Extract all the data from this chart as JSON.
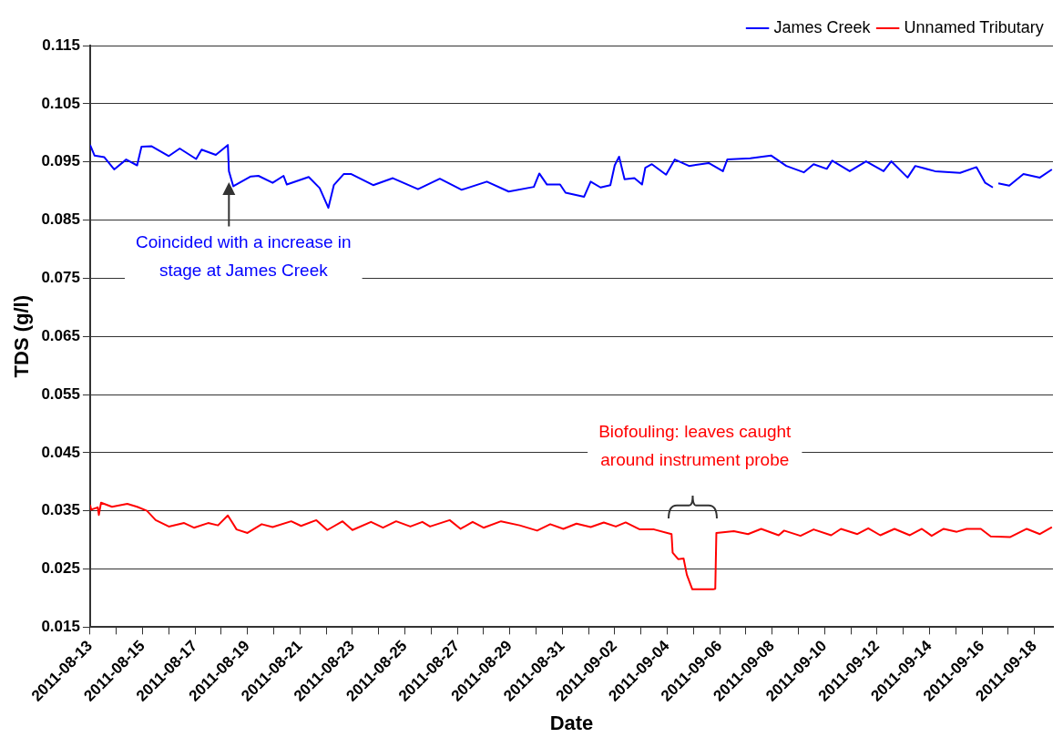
{
  "chart_data": {
    "type": "line",
    "xlabel": "Date",
    "ylabel": "TDS (g/l)",
    "xlim": [
      "2011-08-13T00:00",
      "2011-09-18T17:00"
    ],
    "xticks": [
      "2011-08-13",
      {
        "value": "2011-08-14",
        "label": null
      },
      "2011-08-15",
      {
        "value": "2011-08-16",
        "label": null
      },
      "2011-08-17",
      {
        "value": "2011-08-18",
        "label": null
      },
      "2011-08-19",
      {
        "value": "2011-08-20",
        "label": null
      },
      "2011-08-21",
      {
        "value": "2011-08-22",
        "label": null
      },
      "2011-08-23",
      {
        "value": "2011-08-24",
        "label": null
      },
      "2011-08-25",
      {
        "value": "2011-08-26",
        "label": null
      },
      "2011-08-27",
      {
        "value": "2011-08-28",
        "label": null
      },
      "2011-08-29",
      {
        "value": "2011-08-30",
        "label": null
      },
      "2011-08-31",
      {
        "value": "2011-09-01",
        "label": null
      },
      "2011-09-02",
      {
        "value": "2011-09-03",
        "label": null
      },
      "2011-09-04",
      {
        "value": "2011-09-05",
        "label": null
      },
      "2011-09-06",
      {
        "value": "2011-09-07",
        "label": null
      },
      "2011-09-08",
      {
        "value": "2011-09-09",
        "label": null
      },
      "2011-09-10",
      {
        "value": "2011-09-11",
        "label": null
      },
      "2011-09-12",
      {
        "value": "2011-09-13",
        "label": null
      },
      "2011-09-14",
      {
        "value": "2011-09-15",
        "label": null
      },
      "2011-09-16",
      {
        "value": "2011-09-17",
        "label": null
      },
      "2011-09-18"
    ],
    "ylim": [
      0.015,
      0.115
    ],
    "yticks": [
      0.015,
      0.025,
      0.035,
      0.045,
      0.055,
      0.065,
      0.075,
      0.085,
      0.095,
      0.105,
      0.115
    ],
    "grid": "y",
    "legend": "top right",
    "marker": "none",
    "line_style": "solid",
    "annotations": [
      {
        "text": "Coincided with a increase in stage at James Creek",
        "x": "2011-08-18T07:00",
        "y": 0.0915
      },
      "Biofouling: leaves caught around instrument probe"
    ],
    "series": [
      {
        "name": "James Creek",
        "color": "#0000ff",
        "x": [
          "2011-08-13T00:00",
          "2011-08-13T04:00",
          "2011-08-13T13:00",
          "2011-08-13T22:00",
          "2011-08-14T09:00",
          "2011-08-14T19:00",
          "2011-08-14T23:00",
          "2011-08-15T08:00",
          "2011-08-16T00:00",
          "2011-08-16T10:00",
          "2011-08-17T01:00",
          "2011-08-17T06:00",
          "2011-08-17T19:00",
          "2011-08-18T06:00",
          "2011-08-18T07:00",
          "2011-08-18T11:00",
          "2011-08-19T03:00",
          "2011-08-19T10:00",
          "2011-08-19T23:00",
          "2011-08-20T09:00",
          "2011-08-20T12:00",
          "2011-08-21T08:00",
          "2011-08-21T18:00",
          "2011-08-22T02:00",
          "2011-08-22T07:00",
          "2011-08-22T16:00",
          "2011-08-22T23:00",
          "2011-08-23T19:00",
          "2011-08-24T13:00",
          "2011-08-25T12:00",
          "2011-08-26T08:00",
          "2011-08-27T04:00",
          "2011-08-28T03:00",
          "2011-08-28T23:00",
          "2011-08-29T22:00",
          "2011-08-30T03:00",
          "2011-08-30T10:00",
          "2011-08-30T22:00",
          "2011-08-31T03:00",
          "2011-08-31T20:00",
          "2011-09-01T02:00",
          "2011-09-01T11:00",
          "2011-09-01T20:00",
          "2011-09-02T00:00",
          "2011-09-02T04:00",
          "2011-09-02T09:00",
          "2011-09-02T18:00",
          "2011-09-03T01:00",
          "2011-09-03T04:00",
          "2011-09-03T10:00",
          "2011-09-03T23:00",
          "2011-09-04T07:00",
          "2011-09-04T20:00",
          "2011-09-05T14:00",
          "2011-09-06T03:00",
          "2011-09-06T07:00",
          "2011-09-07T04:00",
          "2011-09-07T23:00",
          "2011-09-08T13:00",
          "2011-09-09T05:00",
          "2011-09-09T14:00",
          "2011-09-10T02:00",
          "2011-09-10T07:00",
          "2011-09-10T23:00",
          "2011-09-11T14:00",
          "2011-09-12T06:00",
          "2011-09-12T13:00",
          "2011-09-13T04:00",
          "2011-09-13T11:00",
          "2011-09-14T05:00",
          "2011-09-15T04:00",
          "2011-09-15T19:00",
          "2011-09-16T03:00",
          "2011-09-16T10:00",
          "2011-09-16T12:00",
          "2011-09-16T15:00",
          "2011-09-17T01:00",
          "2011-09-17T14:00",
          "2011-09-18T05:00",
          "2011-09-18T16:00"
        ],
        "values": [
          0.0979,
          0.0961,
          0.0958,
          0.0937,
          0.0954,
          0.0944,
          0.0976,
          0.0977,
          0.096,
          0.0973,
          0.0955,
          0.0971,
          0.0962,
          0.0979,
          0.0934,
          0.0908,
          0.0925,
          0.0926,
          0.0914,
          0.0926,
          0.0911,
          0.0924,
          0.0905,
          0.0871,
          0.091,
          0.0929,
          0.0929,
          0.091,
          0.0922,
          0.0903,
          0.0921,
          0.0902,
          0.0916,
          0.0899,
          0.0907,
          0.093,
          0.0911,
          0.0911,
          0.0897,
          0.089,
          0.0916,
          0.0906,
          0.091,
          0.0944,
          0.0959,
          0.092,
          0.0922,
          0.0911,
          0.094,
          0.0946,
          0.0928,
          0.0954,
          0.0943,
          0.0948,
          0.0934,
          0.0954,
          0.0956,
          0.0961,
          0.0943,
          0.0932,
          0.0946,
          0.0938,
          0.0952,
          0.0934,
          0.0951,
          0.0934,
          0.0951,
          0.0923,
          0.0943,
          0.0934,
          0.0931,
          0.0941,
          0.0914,
          0.0906,
          null,
          0.0913,
          0.0909,
          0.0929,
          0.0923,
          0.0937
        ]
      },
      {
        "name": "Unnamed Tributary",
        "color": "#ff0000",
        "x": [
          "2011-08-13T00:00",
          "2011-08-13T01:00",
          "2011-08-13T07:00",
          "2011-08-13T08:00",
          "2011-08-13T10:00",
          "2011-08-13T20:00",
          "2011-08-14T10:00",
          "2011-08-14T19:00",
          "2011-08-15T04:00",
          "2011-08-15T12:00",
          "2011-08-16T00:00",
          "2011-08-16T14:00",
          "2011-08-16T23:00",
          "2011-08-17T12:00",
          "2011-08-17T21:00",
          "2011-08-18T06:00",
          "2011-08-18T14:00",
          "2011-08-19T00:00",
          "2011-08-19T13:00",
          "2011-08-19T23:00",
          "2011-08-20T16:00",
          "2011-08-21T01:00",
          "2011-08-21T15:00",
          "2011-08-22T01:00",
          "2011-08-22T15:00",
          "2011-08-23T00:00",
          "2011-08-23T17:00",
          "2011-08-24T04:00",
          "2011-08-24T16:00",
          "2011-08-25T05:00",
          "2011-08-25T16:00",
          "2011-08-25T23:00",
          "2011-08-26T17:00",
          "2011-08-27T03:00",
          "2011-08-27T14:00",
          "2011-08-28T00:00",
          "2011-08-28T16:00",
          "2011-08-29T09:00",
          "2011-08-30T01:00",
          "2011-08-30T13:00",
          "2011-08-31T01:00",
          "2011-08-31T13:00",
          "2011-09-01T02:00",
          "2011-09-01T14:00",
          "2011-09-02T01:00",
          "2011-09-02T10:00",
          "2011-09-02T23:00",
          "2011-09-03T12:00",
          "2011-09-04T04:00",
          "2011-09-04T05:00",
          "2011-09-04T10:00",
          "2011-09-04T15:00",
          "2011-09-04T18:00",
          "2011-09-04T23:00",
          "2011-09-05T18:00",
          "2011-09-05T20:00",
          "2011-09-05T21:00",
          "2011-09-06T13:00",
          "2011-09-07T02:00",
          "2011-09-07T14:00",
          "2011-09-08T06:00",
          "2011-09-08T11:00",
          "2011-09-09T02:00",
          "2011-09-09T14:00",
          "2011-09-10T06:00",
          "2011-09-10T15:00",
          "2011-09-11T06:00",
          "2011-09-11T16:00",
          "2011-09-12T03:00",
          "2011-09-12T16:00",
          "2011-09-13T06:00",
          "2011-09-13T17:00",
          "2011-09-14T02:00",
          "2011-09-14T13:00",
          "2011-09-15T01:00",
          "2011-09-15T10:00",
          "2011-09-15T23:00",
          "2011-09-16T08:00",
          "2011-09-17T02:00",
          "2011-09-17T17:00",
          "2011-09-18T05:00",
          "2011-09-18T16:00"
        ],
        "values": [
          0.036,
          0.0352,
          0.0356,
          0.0343,
          0.0364,
          0.0357,
          0.0362,
          0.0357,
          0.035,
          0.0334,
          0.0323,
          0.0329,
          0.0321,
          0.0329,
          0.0325,
          0.0342,
          0.0318,
          0.0312,
          0.0327,
          0.0322,
          0.0332,
          0.0324,
          0.0334,
          0.0317,
          0.0332,
          0.0317,
          0.0331,
          0.0321,
          0.0332,
          0.0323,
          0.0331,
          0.0323,
          0.0334,
          0.0319,
          0.0331,
          0.0321,
          0.0332,
          0.0325,
          0.0316,
          0.0327,
          0.0319,
          0.0328,
          0.0322,
          0.033,
          0.0323,
          0.033,
          0.0318,
          0.0318,
          0.031,
          0.0278,
          0.0267,
          0.0268,
          0.024,
          0.0215,
          0.0215,
          0.0216,
          0.0312,
          0.0315,
          0.031,
          0.0319,
          0.0308,
          0.0316,
          0.0307,
          0.0318,
          0.0308,
          0.0319,
          0.031,
          0.032,
          0.0308,
          0.0319,
          0.0308,
          0.0319,
          0.0307,
          0.0319,
          0.0314,
          0.0319,
          0.0319,
          0.0306,
          0.0305,
          0.0319,
          0.031,
          0.0322
        ]
      }
    ]
  }
}
